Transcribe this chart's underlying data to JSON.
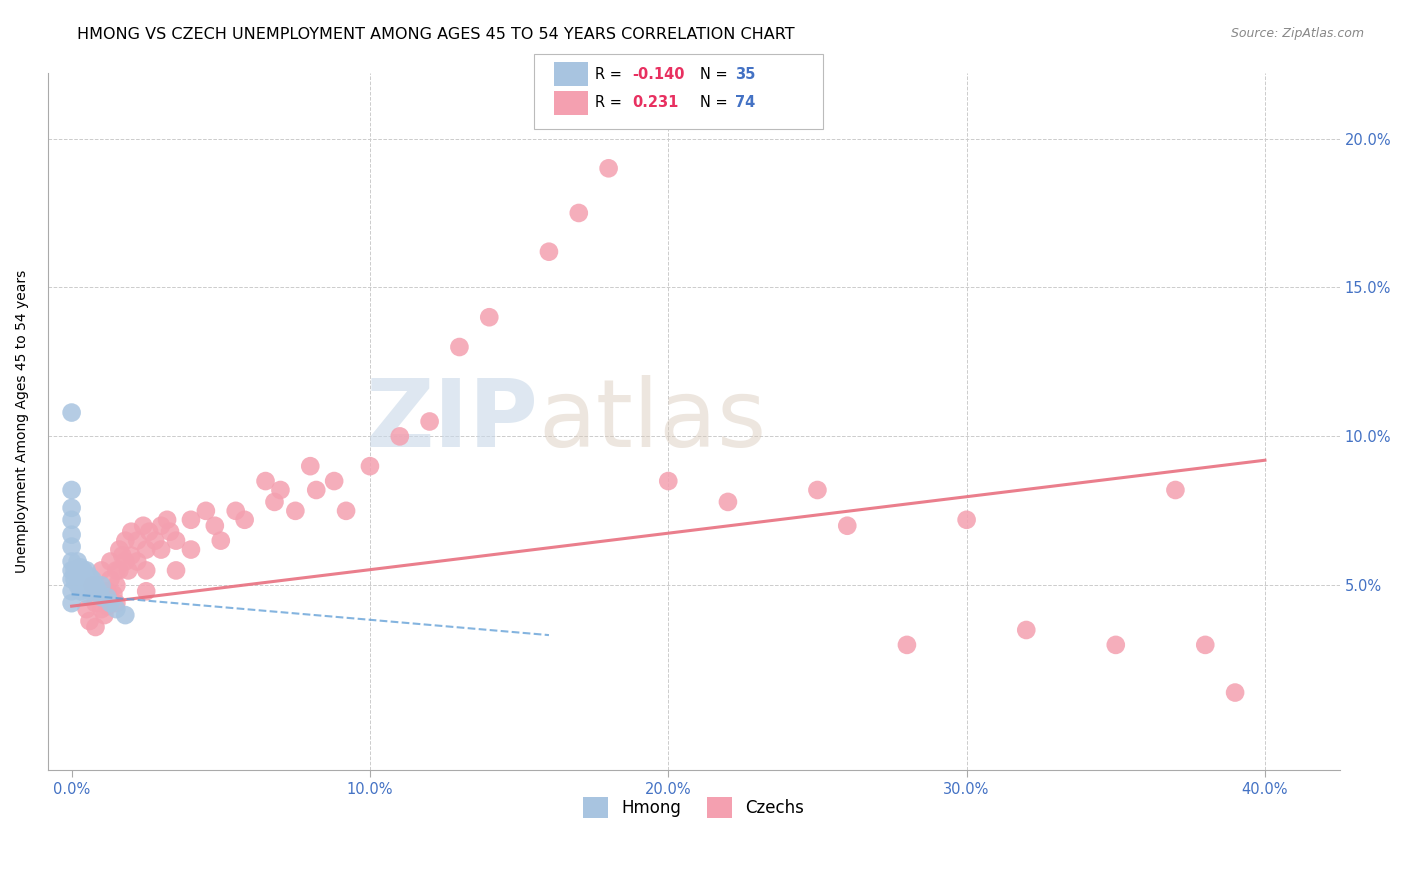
{
  "title": "HMONG VS CZECH UNEMPLOYMENT AMONG AGES 45 TO 54 YEARS CORRELATION CHART",
  "source": "Source: ZipAtlas.com",
  "ylabel": "Unemployment Among Ages 45 to 54 years",
  "x_tick_labels": [
    "0.0%",
    "10.0%",
    "20.0%",
    "30.0%",
    "40.0%"
  ],
  "x_tick_values": [
    0.0,
    0.1,
    0.2,
    0.3,
    0.4
  ],
  "y_tick_values": [
    0.0,
    0.05,
    0.1,
    0.15,
    0.2
  ],
  "y_tick_labels_right": [
    "",
    "5.0%",
    "10.0%",
    "15.0%",
    "20.0%"
  ],
  "xlim": [
    -0.008,
    0.425
  ],
  "ylim": [
    -0.012,
    0.222
  ],
  "hmong_color": "#a8c4e0",
  "czech_color": "#f4a0b0",
  "hmong_line_color": "#5b9bd5",
  "czech_line_color": "#e87080",
  "watermark_zip_color": "#c8d8e8",
  "watermark_atlas_color": "#d8c8b8",
  "title_fontsize": 11.5,
  "axis_label_fontsize": 10,
  "tick_fontsize": 10.5,
  "hmong_x": [
    0.0,
    0.0,
    0.0,
    0.0,
    0.0,
    0.0,
    0.0,
    0.0,
    0.0,
    0.0,
    0.0,
    0.001,
    0.001,
    0.002,
    0.002,
    0.002,
    0.003,
    0.003,
    0.003,
    0.004,
    0.004,
    0.005,
    0.005,
    0.005,
    0.006,
    0.006,
    0.007,
    0.008,
    0.009,
    0.01,
    0.01,
    0.012,
    0.013,
    0.015,
    0.018
  ],
  "hmong_y": [
    0.108,
    0.082,
    0.076,
    0.072,
    0.067,
    0.063,
    0.058,
    0.055,
    0.052,
    0.048,
    0.044,
    0.055,
    0.052,
    0.058,
    0.055,
    0.05,
    0.056,
    0.052,
    0.048,
    0.055,
    0.05,
    0.055,
    0.051,
    0.047,
    0.053,
    0.048,
    0.052,
    0.05,
    0.048,
    0.05,
    0.046,
    0.046,
    0.044,
    0.042,
    0.04
  ],
  "czech_x": [
    0.005,
    0.006,
    0.007,
    0.008,
    0.008,
    0.009,
    0.01,
    0.01,
    0.011,
    0.012,
    0.012,
    0.013,
    0.013,
    0.014,
    0.015,
    0.015,
    0.015,
    0.016,
    0.016,
    0.017,
    0.018,
    0.018,
    0.019,
    0.02,
    0.02,
    0.022,
    0.022,
    0.024,
    0.025,
    0.025,
    0.025,
    0.026,
    0.028,
    0.03,
    0.03,
    0.032,
    0.033,
    0.035,
    0.035,
    0.04,
    0.04,
    0.045,
    0.048,
    0.05,
    0.055,
    0.058,
    0.065,
    0.068,
    0.07,
    0.075,
    0.08,
    0.082,
    0.088,
    0.092,
    0.1,
    0.11,
    0.12,
    0.13,
    0.14,
    0.16,
    0.17,
    0.18,
    0.2,
    0.22,
    0.25,
    0.26,
    0.28,
    0.3,
    0.32,
    0.35,
    0.37,
    0.38,
    0.39
  ],
  "czech_y": [
    0.042,
    0.038,
    0.05,
    0.044,
    0.036,
    0.048,
    0.042,
    0.055,
    0.04,
    0.048,
    0.043,
    0.058,
    0.052,
    0.047,
    0.055,
    0.05,
    0.044,
    0.062,
    0.055,
    0.06,
    0.065,
    0.058,
    0.055,
    0.068,
    0.06,
    0.065,
    0.058,
    0.07,
    0.062,
    0.055,
    0.048,
    0.068,
    0.065,
    0.07,
    0.062,
    0.072,
    0.068,
    0.065,
    0.055,
    0.072,
    0.062,
    0.075,
    0.07,
    0.065,
    0.075,
    0.072,
    0.085,
    0.078,
    0.082,
    0.075,
    0.09,
    0.082,
    0.085,
    0.075,
    0.09,
    0.1,
    0.105,
    0.13,
    0.14,
    0.162,
    0.175,
    0.19,
    0.085,
    0.078,
    0.082,
    0.07,
    0.03,
    0.072,
    0.035,
    0.03,
    0.082,
    0.03,
    0.014
  ],
  "hmong_trend_x": [
    0.0,
    0.14
  ],
  "hmong_trend_y": [
    0.047,
    0.035
  ],
  "czech_trend_x": [
    0.0,
    0.4
  ],
  "czech_trend_y": [
    0.043,
    0.092
  ]
}
